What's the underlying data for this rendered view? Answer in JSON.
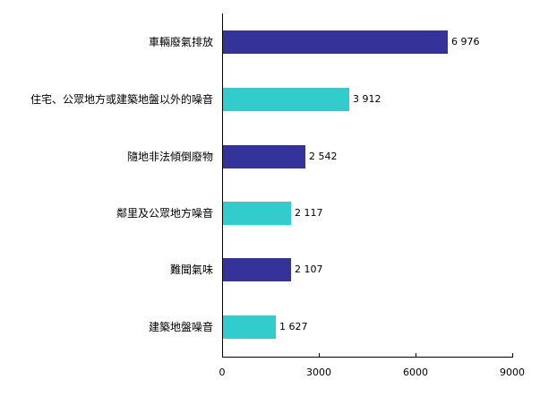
{
  "chart_data": {
    "type": "bar",
    "orientation": "horizontal",
    "title": "",
    "xlabel": "",
    "ylabel": "",
    "categories": [
      "車輛廢氣排放",
      "住宅、公眾地方或建築地盤以外的噪音",
      "隨地非法傾倒廢物",
      "鄰里及公眾地方噪音",
      "難聞氣味",
      "建築地盤噪音"
    ],
    "values": [
      6976,
      3912,
      2542,
      2117,
      2107,
      1627
    ],
    "value_labels": [
      "6 976",
      "3 912",
      "2 542",
      "2 117",
      "2 107",
      "1 627"
    ],
    "bar_colors": [
      "#333399",
      "#33CCCC",
      "#333399",
      "#33CCCC",
      "#333399",
      "#33CCCC"
    ],
    "xlim": [
      0,
      9000
    ],
    "xticks": [
      0,
      3000,
      6000,
      9000
    ],
    "xtick_labels": [
      "0",
      "3000",
      "6000",
      "9000"
    ],
    "grid": false,
    "legend": null
  }
}
